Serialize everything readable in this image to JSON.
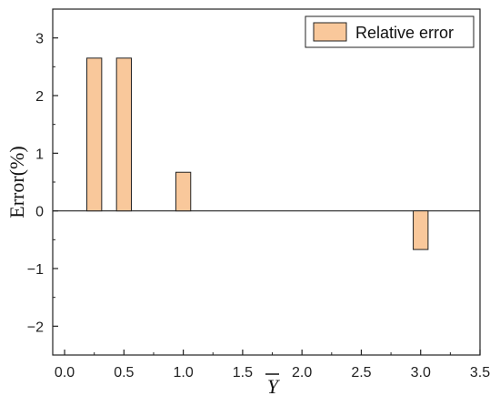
{
  "chart_data": {
    "type": "bar",
    "title": "",
    "xlabel": "Y",
    "xlabel_overline": true,
    "ylabel": "Error(%)",
    "xlim": [
      -0.1,
      3.5
    ],
    "ylim": [
      -2.5,
      3.5
    ],
    "xticks": [
      0.0,
      0.5,
      1.0,
      1.5,
      2.0,
      2.5,
      3.0,
      3.5
    ],
    "xtick_labels": [
      "0.0",
      "0.5",
      "1.0",
      "1.5",
      "2.0",
      "2.5",
      "3.0",
      "3.5"
    ],
    "yticks": [
      -2,
      -1,
      0,
      1,
      2,
      3
    ],
    "ytick_labels": [
      "−2",
      "−1",
      "0",
      "1",
      "2",
      "3"
    ],
    "bar_width": 0.125,
    "series": [
      {
        "name": "Relative error",
        "color": "#F9C89B",
        "edge_color": "#222222",
        "points": [
          {
            "x": 0.25,
            "y": 2.65
          },
          {
            "x": 0.5,
            "y": 2.65
          },
          {
            "x": 1.0,
            "y": 0.67
          },
          {
            "x": 3.0,
            "y": -0.67
          }
        ]
      }
    ],
    "zero_line": true,
    "grid": false,
    "legend_position": "top-right"
  }
}
